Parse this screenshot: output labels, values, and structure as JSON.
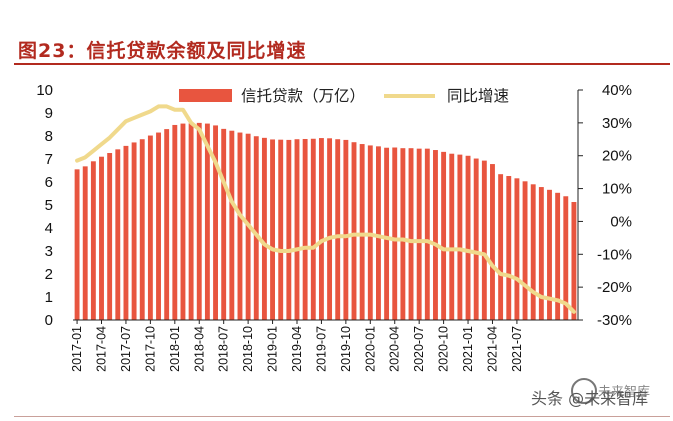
{
  "header": {
    "title": "图23：信托贷款余额及同比增速"
  },
  "watermark": {
    "text": "头条 @未来智库",
    "back_text": "未来智库"
  },
  "colors": {
    "accent": "#b22a1f",
    "bar": "#e8553f",
    "line": "#f0d98c"
  },
  "chart_data": {
    "type": "bar+line",
    "title": "",
    "legend": [
      "信托贷款（万亿）",
      "同比增速"
    ],
    "legend_position": "top-center",
    "x_tick_labels": [
      "2017-01",
      "2017-04",
      "2017-07",
      "2017-10",
      "2018-01",
      "2018-04",
      "2018-07",
      "2018-10",
      "2019-01",
      "2019-04",
      "2019-07",
      "2019-10",
      "2020-01",
      "2020-04",
      "2020-07",
      "2020-10",
      "2021-01",
      "2021-04",
      "2021-07"
    ],
    "y_left": {
      "min": 0,
      "max": 10,
      "ticks": [
        "0",
        "1",
        "2",
        "3",
        "4",
        "5",
        "6",
        "7",
        "8",
        "9",
        "10"
      ]
    },
    "y_right": {
      "min": -30,
      "max": 40,
      "ticks": [
        "-30%",
        "-20%",
        "-10%",
        "0%",
        "10%",
        "20%",
        "30%",
        "40%"
      ]
    },
    "series": [
      {
        "name": "信托贷款（万亿）",
        "type": "bar",
        "axis": "left",
        "values": [
          6.55,
          6.68,
          6.9,
          7.1,
          7.26,
          7.42,
          7.57,
          7.72,
          7.86,
          8.02,
          8.15,
          8.3,
          8.48,
          8.54,
          8.55,
          8.57,
          8.54,
          8.46,
          8.31,
          8.23,
          8.15,
          8.1,
          7.99,
          7.92,
          7.85,
          7.84,
          7.83,
          7.86,
          7.87,
          7.88,
          7.91,
          7.9,
          7.86,
          7.83,
          7.73,
          7.65,
          7.59,
          7.55,
          7.49,
          7.5,
          7.47,
          7.47,
          7.45,
          7.45,
          7.39,
          7.31,
          7.23,
          7.19,
          7.14,
          7.02,
          6.93,
          6.78,
          6.34,
          6.26,
          6.16,
          6.03,
          5.9,
          5.78,
          5.66,
          5.53,
          5.38,
          5.13
        ]
      },
      {
        "name": "同比增速",
        "type": "line",
        "axis": "right",
        "values": [
          18.5,
          19.5,
          21.5,
          23.5,
          25.5,
          28.0,
          30.5,
          31.5,
          32.5,
          33.5,
          35.0,
          35.0,
          34.0,
          34.0,
          30.0,
          28.0,
          23.0,
          18.0,
          12.0,
          6.0,
          2.0,
          -1.0,
          -4.0,
          -7.0,
          -8.5,
          -9.0,
          -9.0,
          -8.5,
          -8.0,
          -8.0,
          -6.0,
          -5.0,
          -4.5,
          -4.5,
          -4.0,
          -4.0,
          -4.0,
          -4.5,
          -5.0,
          -5.5,
          -5.5,
          -6.0,
          -6.0,
          -6.0,
          -7.0,
          -8.5,
          -8.5,
          -8.5,
          -9.0,
          -9.5,
          -10.0,
          -13.5,
          -16.0,
          -16.5,
          -17.5,
          -19.5,
          -21.5,
          -23.0,
          -23.5,
          -24.0,
          -25.0,
          -27.5
        ]
      }
    ]
  }
}
